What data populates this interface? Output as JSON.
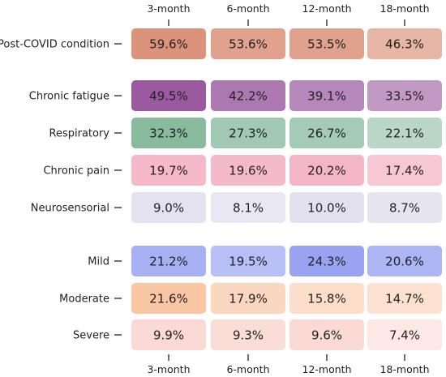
{
  "chart_data": {
    "type": "heatmap",
    "columns": [
      "3-month",
      "6-month",
      "12-month",
      "18-month"
    ],
    "row_groups": [
      {
        "rows": [
          {
            "label": "Post-COVID condition",
            "values": [
              "59.6%",
              "53.6%",
              "53.5%",
              "46.3%"
            ],
            "color": "#d98e74"
          }
        ]
      },
      {
        "rows": [
          {
            "label": "Chronic fatigue",
            "values": [
              "49.5%",
              "42.2%",
              "39.1%",
              "33.5%"
            ],
            "color": "#9b5aa0"
          },
          {
            "label": "Respiratory",
            "values": [
              "32.3%",
              "27.3%",
              "26.7%",
              "22.1%"
            ],
            "color": "#86b99c"
          },
          {
            "label": "Chronic pain",
            "values": [
              "19.7%",
              "19.6%",
              "20.2%",
              "17.4%"
            ],
            "color": "#f4b3c4"
          },
          {
            "label": "Neurosensorial",
            "values": [
              "9.0%",
              "8.1%",
              "10.0%",
              "8.7%"
            ],
            "color": "#e3e0ef"
          }
        ]
      },
      {
        "rows": [
          {
            "label": "Mild",
            "values": [
              "21.2%",
              "19.5%",
              "24.3%",
              "20.6%"
            ],
            "color": "#9aa3f2"
          },
          {
            "label": "Moderate",
            "values": [
              "21.6%",
              "17.9%",
              "15.8%",
              "14.7%"
            ],
            "color": "#fbc6a4"
          },
          {
            "label": "Severe",
            "values": [
              "9.9%",
              "9.3%",
              "9.6%",
              "7.4%"
            ],
            "color": "#fbd9d4"
          }
        ]
      }
    ],
    "cell_alpha": [
      [
        0.95,
        0.82,
        0.82,
        0.66
      ],
      [
        1.0,
        0.82,
        0.73,
        0.62
      ],
      [
        0.98,
        0.78,
        0.75,
        0.58
      ],
      [
        0.92,
        0.9,
        0.96,
        0.74
      ],
      [
        0.95,
        0.78,
        1.0,
        0.88
      ],
      [
        0.86,
        0.7,
        1.0,
        0.8
      ],
      [
        1.0,
        0.7,
        0.58,
        0.52
      ],
      [
        1.0,
        0.9,
        0.96,
        0.6
      ]
    ]
  }
}
